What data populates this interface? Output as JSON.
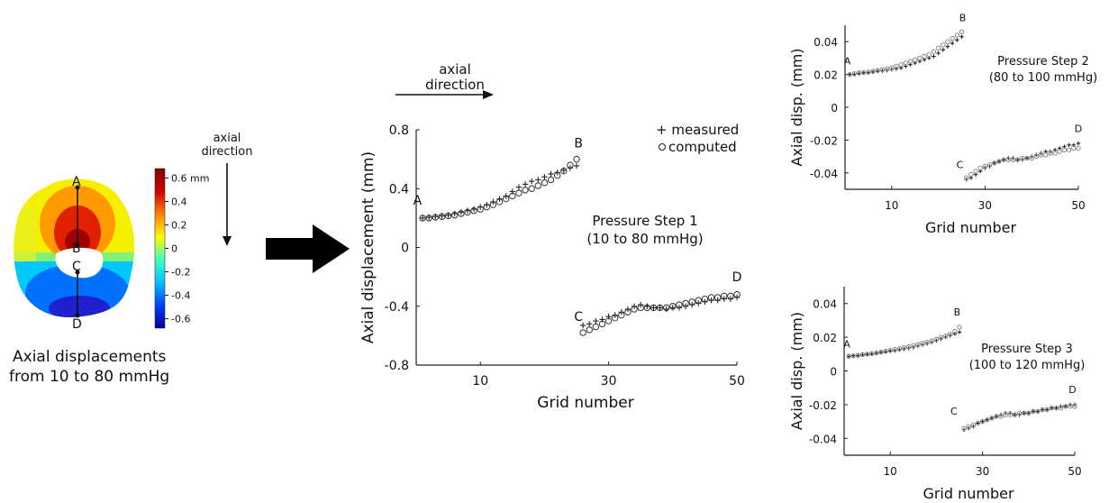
{
  "contour": {
    "labels": [
      "A",
      "B",
      "C",
      "D"
    ],
    "caption_line1": "Axial displacements",
    "caption_line2": "from 10 to 80 mmHg",
    "colorbar_ticks": [
      {
        "value": 0.6,
        "label": "0.6 mm"
      },
      {
        "value": 0.4,
        "label": "0.4"
      },
      {
        "value": 0.2,
        "label": "0.2"
      },
      {
        "value": 0,
        "label": "0"
      },
      {
        "value": -0.2,
        "label": "-0.2"
      },
      {
        "value": -0.4,
        "label": "-0.4"
      },
      {
        "value": -0.6,
        "label": "-0.6"
      }
    ],
    "colorbar_range": [
      -0.68,
      0.68
    ],
    "colors": [
      "#00008f",
      "#0040ff",
      "#00c0ff",
      "#40ffc0",
      "#ffff00",
      "#ff8000",
      "#d00000",
      "#800000"
    ]
  },
  "arrow_left": {
    "line1": "axial",
    "line2": "direction"
  },
  "arrow_top": {
    "line1": "axial",
    "line2": "direction"
  },
  "chart_data": [
    {
      "type": "scatter",
      "title": "",
      "annotation_line1": "Pressure Step 1",
      "annotation_line2": "(10 to 80 mmHg)",
      "xlabel": "Grid number",
      "ylabel": "Axial displacement (mm)",
      "xlim": [
        0,
        50
      ],
      "ylim": [
        -0.8,
        0.8
      ],
      "xticks": [
        10,
        30,
        50
      ],
      "yticks": [
        0.8,
        0.4,
        0,
        -0.4,
        -0.8
      ],
      "ytick_labels": [
        "0.8",
        "0.4",
        "0",
        "-0.4",
        "-0.8"
      ],
      "legend": "top-right",
      "legend_entries": [
        "+ measured",
        "computed"
      ],
      "point_labels": [
        {
          "text": "A",
          "x": 0.2,
          "y": 0.29
        },
        {
          "text": "B",
          "x": 25.3,
          "y": 0.68
        },
        {
          "text": "C",
          "x": 25.3,
          "y": -0.5
        },
        {
          "text": "D",
          "x": 50,
          "y": -0.23
        }
      ],
      "series": [
        {
          "name": "measured",
          "x": [
            1,
            2,
            3,
            4,
            5,
            6,
            7,
            8,
            9,
            10,
            11,
            12,
            13,
            14,
            15,
            16,
            17,
            18,
            19,
            20,
            21,
            22,
            23,
            24,
            25
          ],
          "y": [
            0.2,
            0.205,
            0.21,
            0.215,
            0.22,
            0.23,
            0.24,
            0.25,
            0.26,
            0.275,
            0.29,
            0.31,
            0.33,
            0.35,
            0.38,
            0.41,
            0.43,
            0.45,
            0.46,
            0.48,
            0.5,
            0.51,
            0.525,
            0.54,
            0.555
          ]
        },
        {
          "name": "computed",
          "x": [
            1,
            2,
            3,
            4,
            5,
            6,
            7,
            8,
            9,
            10,
            11,
            12,
            13,
            14,
            15,
            16,
            17,
            18,
            19,
            20,
            21,
            22,
            23,
            24,
            25
          ],
          "y": [
            0.2,
            0.2,
            0.205,
            0.21,
            0.215,
            0.22,
            0.23,
            0.24,
            0.25,
            0.26,
            0.275,
            0.29,
            0.31,
            0.33,
            0.35,
            0.37,
            0.39,
            0.4,
            0.42,
            0.44,
            0.46,
            0.49,
            0.52,
            0.56,
            0.6
          ]
        },
        {
          "name": "measured",
          "x": [
            26,
            27,
            28,
            29,
            30,
            31,
            32,
            33,
            34,
            35,
            36,
            37,
            38,
            39,
            40,
            41,
            42,
            43,
            44,
            45,
            46,
            47,
            48,
            49,
            50
          ],
          "y": [
            -0.53,
            -0.52,
            -0.5,
            -0.49,
            -0.47,
            -0.46,
            -0.44,
            -0.42,
            -0.4,
            -0.39,
            -0.4,
            -0.41,
            -0.41,
            -0.42,
            -0.41,
            -0.41,
            -0.4,
            -0.39,
            -0.38,
            -0.37,
            -0.36,
            -0.36,
            -0.35,
            -0.35,
            -0.34
          ]
        },
        {
          "name": "computed",
          "x": [
            26,
            27,
            28,
            29,
            30,
            31,
            32,
            33,
            34,
            35,
            36,
            37,
            38,
            39,
            40,
            41,
            42,
            43,
            44,
            45,
            46,
            47,
            48,
            49,
            50
          ],
          "y": [
            -0.58,
            -0.56,
            -0.54,
            -0.52,
            -0.5,
            -0.48,
            -0.46,
            -0.44,
            -0.42,
            -0.41,
            -0.41,
            -0.41,
            -0.41,
            -0.41,
            -0.4,
            -0.39,
            -0.38,
            -0.37,
            -0.36,
            -0.35,
            -0.34,
            -0.34,
            -0.33,
            -0.33,
            -0.32
          ]
        }
      ]
    },
    {
      "type": "scatter",
      "title": "",
      "annotation_line1": "Pressure Step 2",
      "annotation_line2": "(80 to 100 mmHg)",
      "xlabel": "Grid number",
      "ylabel": "Axial disp. (mm)",
      "xlim": [
        0,
        50
      ],
      "ylim": [
        -0.05,
        0.05
      ],
      "xticks": [
        10,
        30,
        50
      ],
      "yticks": [
        0.04,
        0.02,
        0,
        -0.02,
        -0.04
      ],
      "ytick_labels": [
        "0.04",
        "0.02",
        "0",
        "-0.02",
        "-0.04"
      ],
      "legend": "none",
      "legend_entries": [],
      "point_labels": [
        {
          "text": "A",
          "x": 0.5,
          "y": 0.026
        },
        {
          "text": "B",
          "x": 25.2,
          "y": 0.0525
        },
        {
          "text": "C",
          "x": 24.6,
          "y": -0.037
        },
        {
          "text": "D",
          "x": 50,
          "y": -0.015
        }
      ],
      "series": [
        {
          "name": "measured",
          "x": [
            1,
            2,
            3,
            4,
            5,
            6,
            7,
            8,
            9,
            10,
            11,
            12,
            13,
            14,
            15,
            16,
            17,
            18,
            19,
            20,
            21,
            22,
            23,
            24,
            25
          ],
          "y": [
            0.02,
            0.02,
            0.0205,
            0.021,
            0.021,
            0.0215,
            0.022,
            0.0222,
            0.0225,
            0.023,
            0.0235,
            0.024,
            0.025,
            0.026,
            0.027,
            0.028,
            0.029,
            0.03,
            0.031,
            0.033,
            0.035,
            0.037,
            0.039,
            0.041,
            0.043
          ]
        },
        {
          "name": "computed",
          "x": [
            1,
            2,
            3,
            4,
            5,
            6,
            7,
            8,
            9,
            10,
            11,
            12,
            13,
            14,
            15,
            16,
            17,
            18,
            19,
            20,
            21,
            22,
            23,
            24,
            25
          ],
          "y": [
            0.02,
            0.0205,
            0.021,
            0.0212,
            0.0215,
            0.022,
            0.0225,
            0.023,
            0.0235,
            0.024,
            0.025,
            0.026,
            0.027,
            0.028,
            0.029,
            0.03,
            0.031,
            0.032,
            0.034,
            0.036,
            0.038,
            0.04,
            0.042,
            0.044,
            0.046
          ]
        },
        {
          "name": "measured",
          "x": [
            26,
            27,
            28,
            29,
            30,
            31,
            32,
            33,
            34,
            35,
            36,
            37,
            38,
            39,
            40,
            41,
            42,
            43,
            44,
            45,
            46,
            47,
            48,
            49,
            50
          ],
          "y": [
            -0.044,
            -0.043,
            -0.041,
            -0.039,
            -0.037,
            -0.036,
            -0.034,
            -0.033,
            -0.032,
            -0.031,
            -0.031,
            -0.032,
            -0.032,
            -0.031,
            -0.03,
            -0.029,
            -0.028,
            -0.027,
            -0.027,
            -0.026,
            -0.025,
            -0.024,
            -0.023,
            -0.023,
            -0.022
          ]
        },
        {
          "name": "computed",
          "x": [
            26,
            27,
            28,
            29,
            30,
            31,
            32,
            33,
            34,
            35,
            36,
            37,
            38,
            39,
            40,
            41,
            42,
            43,
            44,
            45,
            46,
            47,
            48,
            49,
            50
          ],
          "y": [
            -0.043,
            -0.041,
            -0.039,
            -0.037,
            -0.036,
            -0.035,
            -0.034,
            -0.033,
            -0.032,
            -0.032,
            -0.032,
            -0.032,
            -0.031,
            -0.031,
            -0.031,
            -0.03,
            -0.029,
            -0.029,
            -0.028,
            -0.028,
            -0.027,
            -0.026,
            -0.026,
            -0.025,
            -0.025
          ]
        }
      ]
    },
    {
      "type": "scatter",
      "title": "",
      "annotation_line1": "Pressure Step 3",
      "annotation_line2": "(100 to 120 mmHg)",
      "xlabel": "Grid number",
      "ylabel": "Axial disp. (mm)",
      "xlim": [
        0,
        50
      ],
      "ylim": [
        -0.05,
        0.05
      ],
      "xticks": [
        10,
        30,
        50
      ],
      "yticks": [
        0.04,
        0.02,
        0,
        -0.02,
        -0.04
      ],
      "ytick_labels": [
        "0.04",
        "0.02",
        "0",
        "-0.02",
        "-0.04"
      ],
      "legend": "none",
      "legend_entries": [],
      "point_labels": [
        {
          "text": "A",
          "x": 0.6,
          "y": 0.014
        },
        {
          "text": "B",
          "x": 24.5,
          "y": 0.033
        },
        {
          "text": "C",
          "x": 23.8,
          "y": -0.026
        },
        {
          "text": "D",
          "x": 49.5,
          "y": -0.013
        }
      ],
      "series": [
        {
          "name": "measured",
          "x": [
            1,
            2,
            3,
            4,
            5,
            6,
            7,
            8,
            9,
            10,
            11,
            12,
            13,
            14,
            15,
            16,
            17,
            18,
            19,
            20,
            21,
            22,
            23,
            24,
            25
          ],
          "y": [
            0.0085,
            0.009,
            0.009,
            0.0095,
            0.0098,
            0.01,
            0.0105,
            0.011,
            0.0113,
            0.0118,
            0.012,
            0.0125,
            0.013,
            0.0135,
            0.014,
            0.0148,
            0.0155,
            0.0162,
            0.017,
            0.018,
            0.019,
            0.02,
            0.021,
            0.022,
            0.023
          ]
        },
        {
          "name": "computed",
          "x": [
            1,
            2,
            3,
            4,
            5,
            6,
            7,
            8,
            9,
            10,
            11,
            12,
            13,
            14,
            15,
            16,
            17,
            18,
            19,
            20,
            21,
            22,
            23,
            24,
            25
          ],
          "y": [
            0.0088,
            0.009,
            0.0093,
            0.0097,
            0.01,
            0.0103,
            0.0107,
            0.0112,
            0.0117,
            0.0122,
            0.0127,
            0.0132,
            0.0138,
            0.0144,
            0.015,
            0.0157,
            0.0164,
            0.0171,
            0.0179,
            0.0188,
            0.0198,
            0.0208,
            0.0218,
            0.0235,
            0.026
          ]
        },
        {
          "name": "measured",
          "x": [
            26,
            27,
            28,
            29,
            30,
            31,
            32,
            33,
            34,
            35,
            36,
            37,
            38,
            39,
            40,
            41,
            42,
            43,
            44,
            45,
            46,
            47,
            48,
            49,
            50
          ],
          "y": [
            -0.035,
            -0.034,
            -0.033,
            -0.031,
            -0.03,
            -0.029,
            -0.028,
            -0.027,
            -0.026,
            -0.025,
            -0.025,
            -0.026,
            -0.026,
            -0.025,
            -0.025,
            -0.024,
            -0.024,
            -0.023,
            -0.023,
            -0.022,
            -0.022,
            -0.021,
            -0.021,
            -0.02,
            -0.02
          ]
        },
        {
          "name": "computed",
          "x": [
            26,
            27,
            28,
            29,
            30,
            31,
            32,
            33,
            34,
            35,
            36,
            37,
            38,
            39,
            40,
            41,
            42,
            43,
            44,
            45,
            46,
            47,
            48,
            49,
            50
          ],
          "y": [
            -0.034,
            -0.033,
            -0.032,
            -0.031,
            -0.03,
            -0.029,
            -0.028,
            -0.027,
            -0.027,
            -0.026,
            -0.026,
            -0.026,
            -0.025,
            -0.025,
            -0.025,
            -0.024,
            -0.024,
            -0.023,
            -0.023,
            -0.022,
            -0.022,
            -0.022,
            -0.021,
            -0.021,
            -0.021
          ]
        }
      ]
    }
  ]
}
